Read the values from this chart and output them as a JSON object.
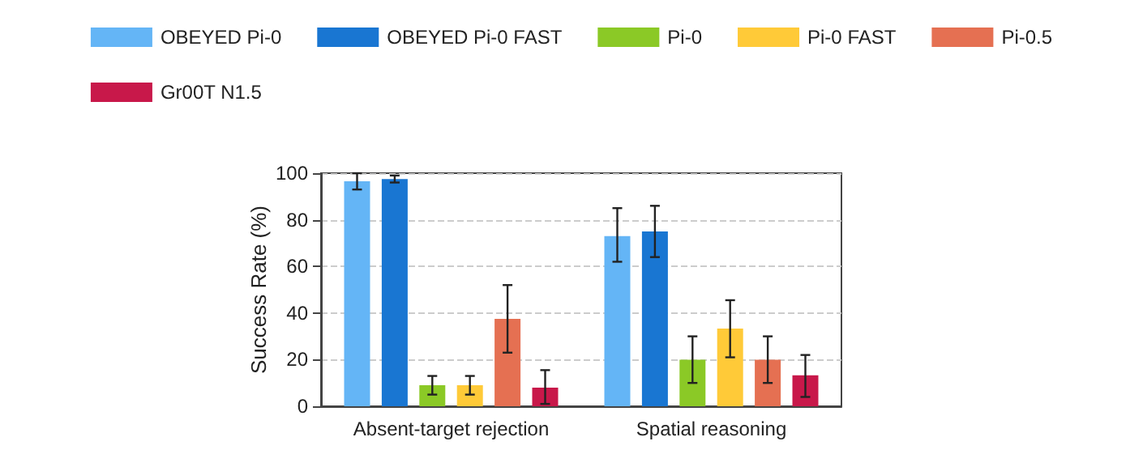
{
  "chart_data": {
    "type": "bar",
    "ylabel": "Success Rate (%)",
    "categories": [
      "Absent-target rejection",
      "Spatial reasoning"
    ],
    "series": [
      {
        "name": "OBEYED Pi-0",
        "color": "#64b5f6",
        "values": [
          96.5,
          73
        ],
        "errors": [
          [
            93,
            100
          ],
          [
            62,
            85
          ]
        ]
      },
      {
        "name": "OBEYED Pi-0 FAST",
        "color": "#1976d2",
        "values": [
          97.5,
          75
        ],
        "errors": [
          [
            96,
            99
          ],
          [
            64,
            86
          ]
        ]
      },
      {
        "name": "Pi-0",
        "color": "#8bc926",
        "values": [
          9,
          20
        ],
        "errors": [
          [
            5,
            13
          ],
          [
            10,
            30
          ]
        ]
      },
      {
        "name": "Pi-0 FAST",
        "color": "#ffca38",
        "values": [
          9,
          33.3
        ],
        "errors": [
          [
            5,
            13
          ],
          [
            21,
            45.5
          ]
        ]
      },
      {
        "name": "Pi-0.5",
        "color": "#e57052",
        "values": [
          37.5,
          20
        ],
        "errors": [
          [
            23,
            52
          ],
          [
            10,
            30
          ]
        ]
      },
      {
        "name": "Gr00T N1.5",
        "color": "#c8184a",
        "values": [
          8,
          13.3
        ],
        "errors": [
          [
            1,
            15.5
          ],
          [
            4,
            22
          ]
        ]
      }
    ],
    "ylim": [
      0,
      100
    ],
    "yticks": [
      0,
      20,
      40,
      60,
      80,
      100
    ],
    "grid": "y",
    "legend": "top"
  }
}
